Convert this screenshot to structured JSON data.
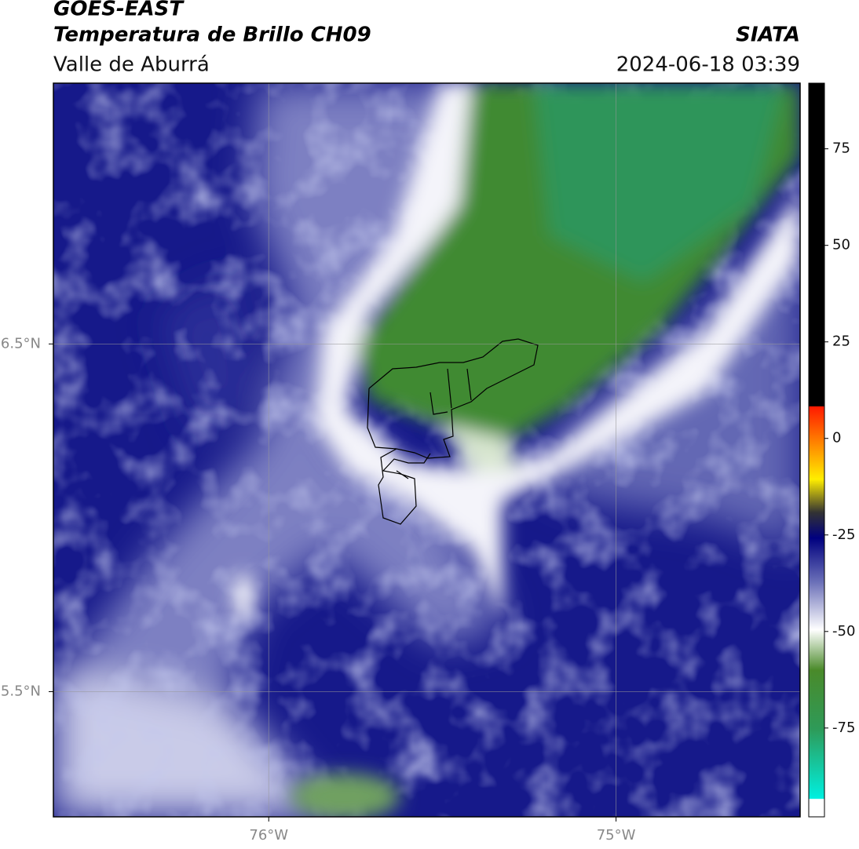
{
  "header": {
    "title": "GOES-EAST",
    "subtitle": "Temperatura de Brillo CH09",
    "region": "Valle de Aburrá",
    "source": "SIATA",
    "datetime": "2024-06-18 03:39"
  },
  "map": {
    "xlim": [
      -76.62,
      -74.47
    ],
    "ylim": [
      5.14,
      7.25
    ],
    "yticks": [
      {
        "value": 6.5,
        "label": "6.5°N"
      },
      {
        "value": 5.5,
        "label": "5.5°N"
      }
    ],
    "xticks": [
      {
        "value": -76,
        "label": "76°W"
      },
      {
        "value": -75,
        "label": "75°W"
      }
    ]
  },
  "colorbar": {
    "lim": [
      -98,
      92
    ],
    "ticks": [
      75,
      50,
      25,
      0,
      -25,
      -50,
      -75
    ]
  }
}
